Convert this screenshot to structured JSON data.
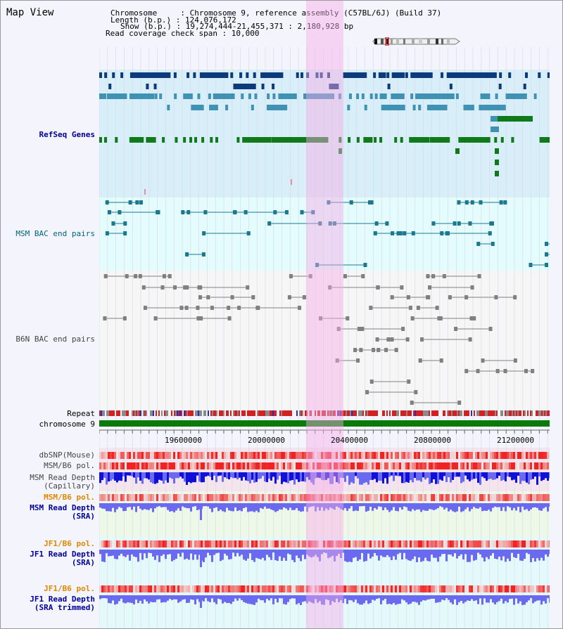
{
  "page_title": "Map View",
  "info": {
    "chromosome_label": "Chromosome     : Chromosome 9, reference assembly (C57BL/6J) (Build 37)",
    "length_label": "Length (b.p.) : 124,076,172",
    "show_label": "Show (b.p.) : 19,274,444-21,455,371 : 2,180,928 bp",
    "span_label": "Read coverage check span : 10,000"
  },
  "tracks": {
    "refseq": "RefSeq Genes",
    "msm_bac": "MSM BAC end pairs",
    "b6n_bac": "B6N BAC end pairs",
    "repeat": "Repeat",
    "chromosome": "chromosome 9",
    "dbsnp": "dbSNP(Mouse)",
    "msm_b6_pol": "MSM/B6 pol.",
    "msm_rd_cap_1": "MSM Read Depth",
    "msm_rd_cap_2": "(Capillary)",
    "msm_b6_pol_sra": "MSM/B6 pol.",
    "msm_rd_sra_1": "MSM Read Depth",
    "msm_rd_sra_2": "(SRA)",
    "jf1_b6_pol": "JF1/B6 pol.",
    "jf1_rd_sra_1": "JF1 Read Depth",
    "jf1_rd_sra_2": "(SRA)",
    "jf1_b6_pol_trim": "JF1/B6 pol.",
    "jf1_rd_trim_1": "JF1 Read Depth",
    "jf1_rd_trim_2": "(SRA trimmed)"
  },
  "axis_ticks": [
    "19600000",
    "20000000",
    "20400000",
    "20800000",
    "21200000"
  ],
  "colors": {
    "refseq_bg": "#d8eef8",
    "bac_bg": "#e4fcfc",
    "b6n_bg": "#f6f6f6",
    "highlight": "#f6b8e8",
    "gene_dark": "#0c3a7a",
    "gene_mid": "#3f92b4",
    "gene_green": "#0f7a1a",
    "msm_bac": "#1a7890",
    "b6n_bac": "#808080",
    "chromosome": "#0a7a0a",
    "depth": "#6a6af0",
    "depth_dark": "#1010d8",
    "label_blue": "#000099",
    "label_teal": "#006677",
    "label_orange": "#dd8800",
    "label_gray": "#444444"
  },
  "icons": [
    "chromosome-ideogram-icon"
  ]
}
